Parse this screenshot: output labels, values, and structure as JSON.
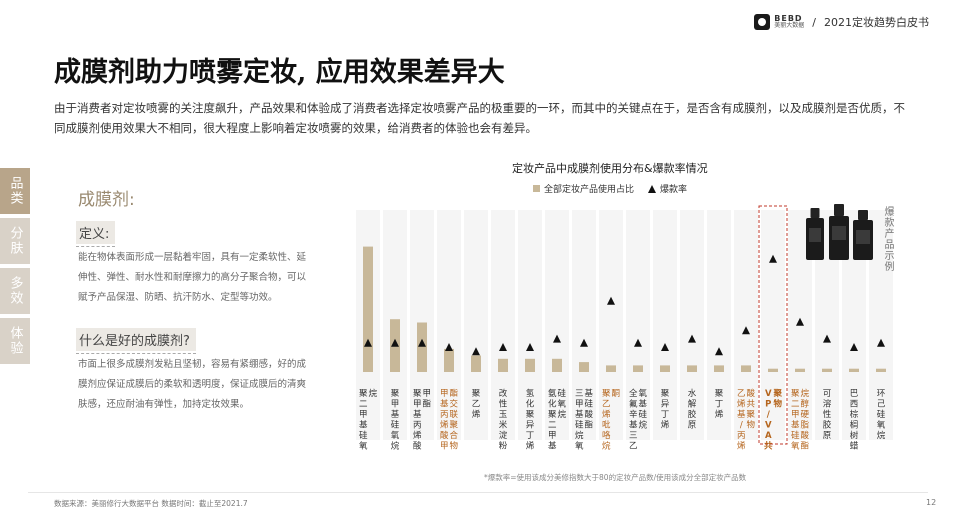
{
  "header": {
    "logo_main": "BEBD",
    "logo_sub": "美丽大数据",
    "separator": "/",
    "report": "2021定妆趋势白皮书"
  },
  "title": "成膜剂助力喷雾定妆, 应用效果差异大",
  "intro": "由于消费者对定妆喷雾的关注度飙升，产品效果和体验成了消费者选择定妆喷雾产品的极重要的一环，而其中的关键点在于，是否含有成膜剂，以及成膜剂是否优质，不同成膜剂使用效果大不相同，很大程度上影响着定妆喷雾的效果，给消费者的体验也会有差异。",
  "left_tabs": [
    "品类",
    "分肤",
    "多效",
    "体验"
  ],
  "left_panel": {
    "heading": "成膜剂:",
    "definition_label": "定义:",
    "definition_text": "能在物体表面形成一层黏着牢固，具有一定柔软性、延伸性、弹性、耐水性和耐摩擦力的高分子聚合物，可以赋予产品保湿、防晒、抗汗防水、定型等功效。",
    "good_label": "什么是好的成膜剂?",
    "good_text": "市面上很多成膜剂发粘且坚韧，容易有紧绷感，好的成膜剂应保证成膜后的柔软和透明度，保证成膜后的清爽肤感，还应耐油有弹性，加持定妆效果。"
  },
  "products_label": "爆款产品示例",
  "footnote": "*爆款率=使用该成分美修指数大于80的定妆产品数/使用该成分全部定妆产品数",
  "source": "数据来源：美丽修行大数据平台      数据时间：截止至2021.7",
  "page_number": "12",
  "colors": {
    "bar": "#c8b899",
    "triangle": "#111111",
    "highlight_text": "#b5651d",
    "normal_text": "#333333",
    "highlight_box": "#c0392b"
  },
  "chart_data": {
    "type": "bar",
    "title": "定妆产品中成膜剂使用分布&爆款率情况",
    "legend": [
      "全部定妆产品使用占比",
      "爆款率"
    ],
    "categories": [
      "聚二甲基硅氧烷",
      "聚甲基硅氧烷",
      "聚甲基丙烯酸甲酯",
      "甲基丙烯酸甲酯交联聚合物",
      "聚乙烯",
      "改性玉米淀粉",
      "氢化聚异丁烯",
      "氨化聚二甲基硅氧烷",
      "三甲基硅烷氧基硅酸酯",
      "聚乙烯吡咯烷酮",
      "全氟辛基三乙氧基硅烷",
      "聚异丁烯",
      "水解胶原",
      "聚丁烯",
      "乙烯基/丙烯酸共聚物",
      "VP/VA共聚物",
      "聚二甲基硅氧烷醇硬脂酸酯",
      "可溶性胶原",
      "巴西棕榈树蜡",
      "环己硅氧烷"
    ],
    "highlighted": [
      false,
      false,
      false,
      true,
      false,
      false,
      false,
      false,
      false,
      true,
      false,
      false,
      false,
      false,
      true,
      true,
      true,
      false,
      false,
      false
    ],
    "boxed": [
      false,
      false,
      false,
      false,
      false,
      false,
      false,
      false,
      false,
      false,
      false,
      false,
      false,
      false,
      false,
      true,
      false,
      false,
      false,
      false
    ],
    "series": [
      {
        "name": "全部定妆产品使用占比",
        "values": [
          38,
          16,
          15,
          7,
          5,
          4,
          4,
          4,
          3,
          2,
          2,
          2,
          2,
          2,
          2,
          1,
          1,
          1,
          1,
          1
        ]
      },
      {
        "name": "爆款率",
        "values": [
          6,
          6,
          6,
          5,
          4,
          5,
          5,
          7,
          6,
          16,
          6,
          5,
          7,
          4,
          9,
          26,
          11,
          7,
          5,
          6
        ]
      }
    ]
  }
}
